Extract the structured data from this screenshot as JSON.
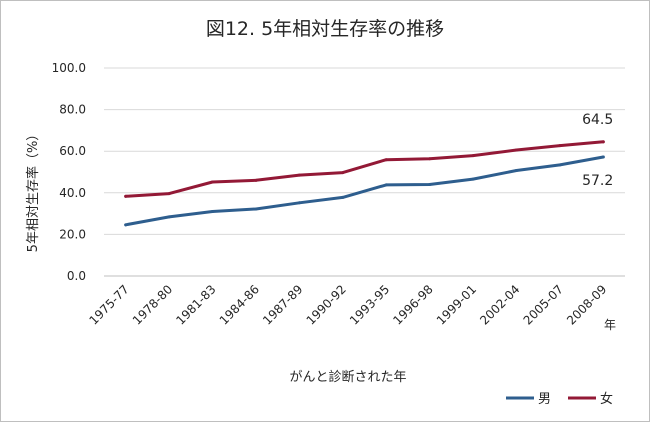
{
  "chart_data": {
    "type": "line",
    "title": "図12. 5年相対生存率の推移",
    "xlabel": "がんと診断された年",
    "ylabel": "5年相対生存率（%）",
    "x_unit": "年",
    "categories": [
      "1975-77",
      "1978-80",
      "1981-83",
      "1984-86",
      "1987-89",
      "1990-92",
      "1993-95",
      "1996-98",
      "1999-01",
      "2002-04",
      "2005-07",
      "2008-09"
    ],
    "ylim": [
      0,
      100
    ],
    "yticks": [
      "0.0",
      "20.0",
      "40.0",
      "60.0",
      "80.0",
      "100.0"
    ],
    "grid": true,
    "legend": "bottom-right",
    "series": [
      {
        "name": "男",
        "color": "#2e5e8e",
        "values": [
          24.6,
          28.4,
          31.0,
          32.2,
          35.2,
          37.8,
          43.8,
          44.0,
          46.6,
          50.7,
          53.4,
          57.2
        ],
        "end_label": "57.2"
      },
      {
        "name": "女",
        "color": "#931936",
        "values": [
          38.3,
          39.6,
          45.2,
          46.0,
          48.5,
          49.7,
          55.9,
          56.4,
          57.9,
          60.6,
          62.7,
          64.5
        ],
        "end_label": "64.5"
      }
    ]
  }
}
